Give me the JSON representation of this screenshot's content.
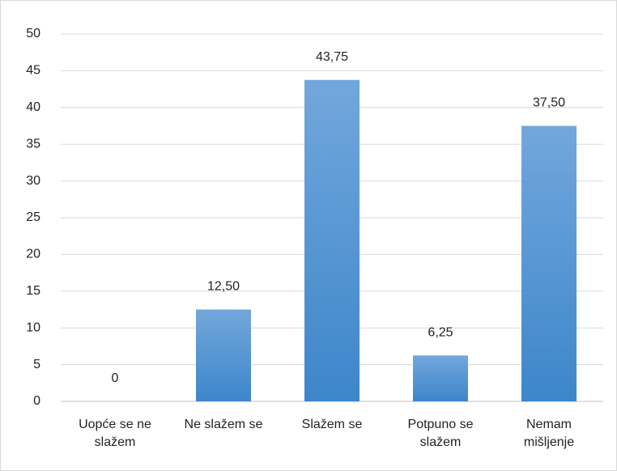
{
  "chart_data": {
    "type": "bar",
    "categories": [
      "Uopće se ne slažem",
      "Ne slažem se",
      "Slažem se",
      "Potpuno se slažem",
      "Nemam mišljenje"
    ],
    "values": [
      0,
      12.5,
      43.75,
      6.25,
      37.5
    ],
    "value_labels": [
      "0",
      "12,50",
      "43,75",
      "6,25",
      "37,50"
    ],
    "color": "#5b9bd5",
    "ylim": [
      0,
      50
    ],
    "yticks": [
      0,
      5,
      10,
      15,
      20,
      25,
      30,
      35,
      40,
      45,
      50
    ],
    "grid": true
  }
}
